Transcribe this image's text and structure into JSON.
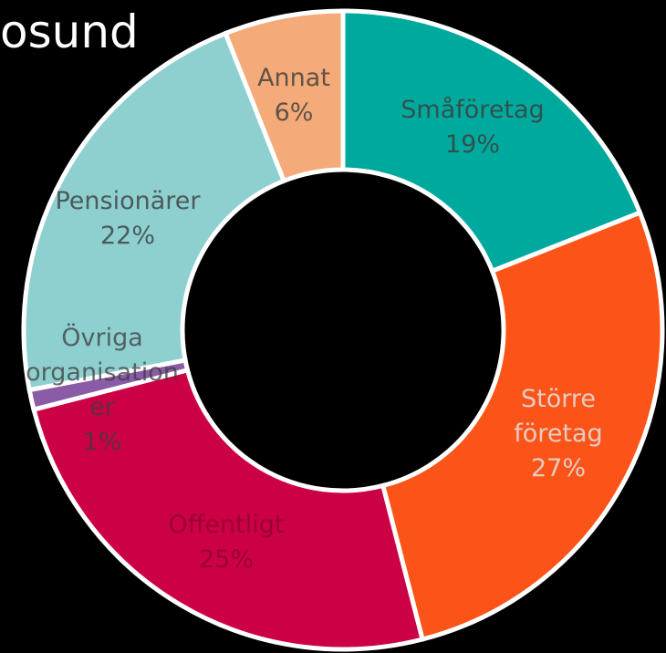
{
  "chart_data": {
    "type": "donut",
    "title": "osund",
    "categories": [
      "Småföretag",
      "Större företag",
      "Offentligt",
      "Övriga organisationer",
      "Pensionärer",
      "Annat"
    ],
    "values": [
      19,
      27,
      25,
      1,
      22,
      6
    ],
    "value_labels": [
      "19%",
      "27%",
      "25%",
      "1%",
      "22%",
      "6%"
    ],
    "colors": [
      "#00a99d",
      "#fc5418",
      "#cc0044",
      "#8a5ca8",
      "#8ecfd0",
      "#f4aa79"
    ]
  }
}
